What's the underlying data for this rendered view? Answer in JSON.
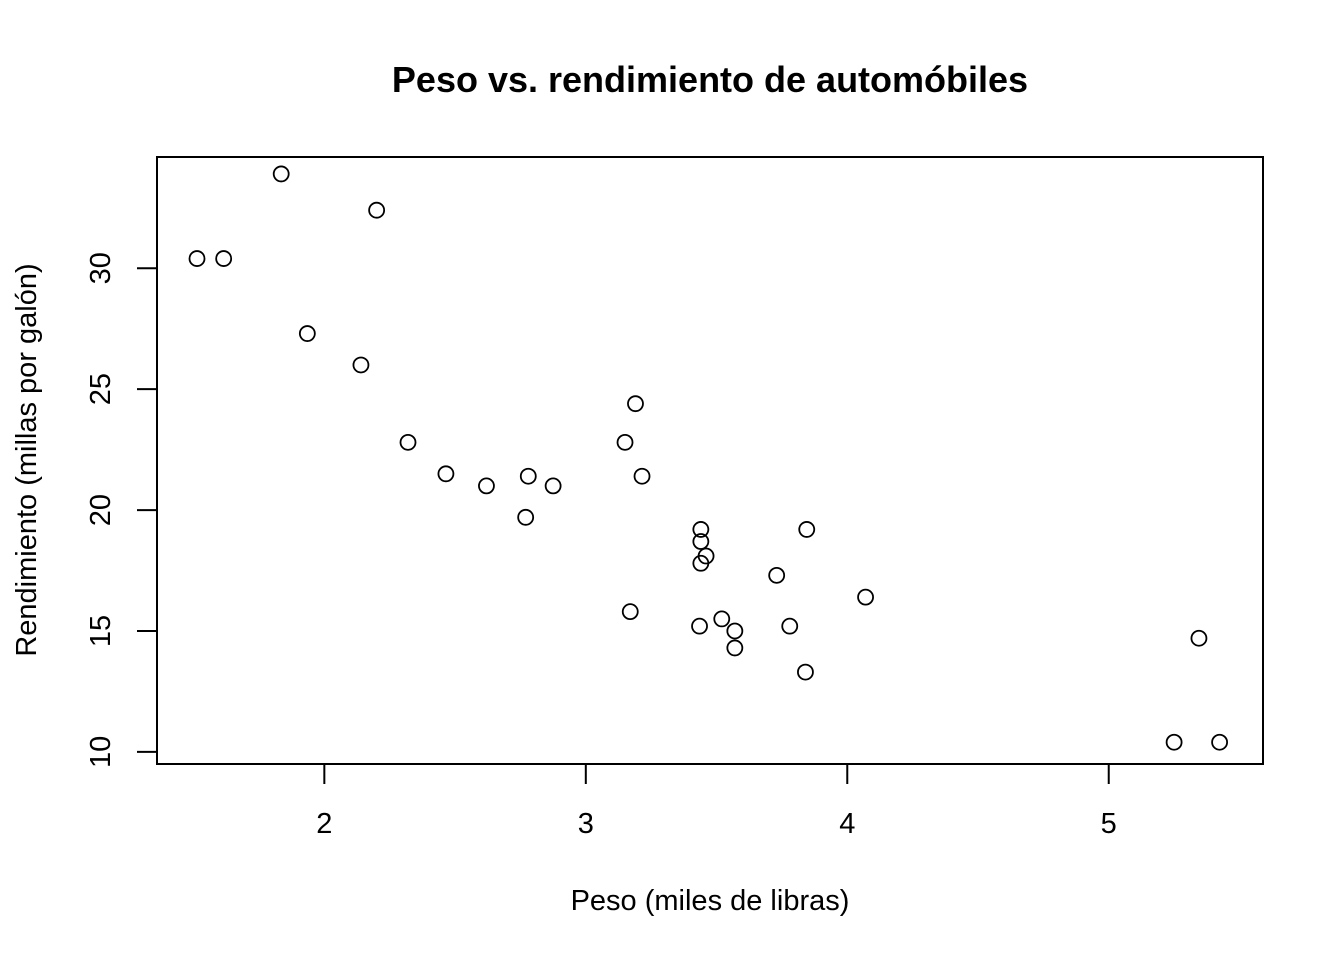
{
  "chart_data": {
    "type": "scatter",
    "title": "Peso vs. rendimiento de automóbiles",
    "xlabel": "Peso (miles de libras)",
    "ylabel": "Rendimiento (millas por galón)",
    "xlim": [
      1.36,
      5.59
    ],
    "ylim": [
      9.5,
      34.6
    ],
    "xticks": [
      2,
      3,
      4,
      5
    ],
    "yticks": [
      10,
      15,
      20,
      25,
      30
    ],
    "grid": false,
    "legend": "none",
    "marker": "open-circle",
    "color": "#000000",
    "x": [
      2.62,
      2.875,
      2.32,
      3.215,
      3.44,
      3.46,
      3.57,
      3.19,
      3.15,
      3.44,
      3.44,
      4.07,
      3.73,
      3.78,
      5.25,
      5.424,
      5.345,
      2.2,
      1.615,
      1.835,
      2.465,
      3.52,
      3.435,
      3.84,
      3.845,
      1.935,
      2.14,
      1.513,
      3.17,
      2.77,
      3.57,
      2.78
    ],
    "y": [
      21.0,
      21.0,
      22.8,
      21.4,
      18.7,
      18.1,
      14.3,
      24.4,
      22.8,
      19.2,
      17.8,
      16.4,
      17.3,
      15.2,
      10.4,
      10.4,
      14.7,
      32.4,
      30.4,
      33.9,
      21.5,
      15.5,
      15.2,
      13.3,
      19.2,
      27.3,
      26.0,
      30.4,
      15.8,
      19.7,
      15.0,
      21.4
    ]
  }
}
